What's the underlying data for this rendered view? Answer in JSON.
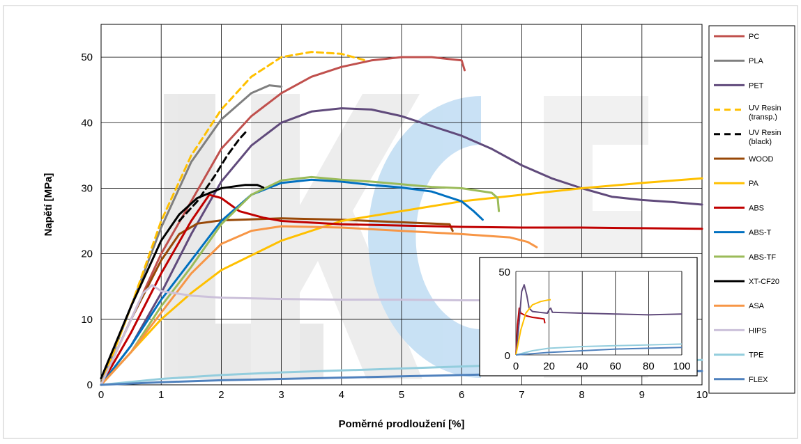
{
  "chart_data": [
    {
      "type": "line",
      "xlabel": "Poměrné prodloužení [%]",
      "ylabel": "Napětí [MPa]",
      "xlim": [
        0,
        10
      ],
      "ylim": [
        0,
        55
      ],
      "x_ticks": [
        0,
        1,
        2,
        3,
        4,
        5,
        6,
        7,
        8,
        9,
        10
      ],
      "y_ticks": [
        0,
        10,
        20,
        30,
        40,
        50
      ],
      "grid": true,
      "legend_position": "right",
      "series": [
        {
          "name": "PC",
          "color": "#c0504d",
          "dash": false,
          "points": [
            [
              0,
              0
            ],
            [
              0.5,
              10
            ],
            [
              1,
              20
            ],
            [
              1.5,
              28
            ],
            [
              2,
              36
            ],
            [
              2.5,
              41
            ],
            [
              3,
              44.5
            ],
            [
              3.5,
              47
            ],
            [
              4,
              48.5
            ],
            [
              4.5,
              49.5
            ],
            [
              5,
              50
            ],
            [
              5.5,
              50
            ],
            [
              6,
              49.5
            ],
            [
              6.05,
              48
            ]
          ]
        },
        {
          "name": "PLA",
          "color": "#7f7f7f",
          "dash": false,
          "points": [
            [
              0,
              0
            ],
            [
              0.5,
              12
            ],
            [
              1,
              24
            ],
            [
              1.5,
              34
            ],
            [
              2,
              40.5
            ],
            [
              2.5,
              44.5
            ],
            [
              2.8,
              45.7
            ],
            [
              3,
              45.5
            ]
          ]
        },
        {
          "name": "PET",
          "color": "#604a7b",
          "dash": false,
          "points": [
            [
              0,
              0
            ],
            [
              0.5,
              6
            ],
            [
              1,
              14
            ],
            [
              1.5,
              23
            ],
            [
              2,
              31
            ],
            [
              2.5,
              36.5
            ],
            [
              3,
              40
            ],
            [
              3.5,
              41.7
            ],
            [
              4,
              42.2
            ],
            [
              4.5,
              42
            ],
            [
              5,
              41
            ],
            [
              5.5,
              39.5
            ],
            [
              6,
              38
            ],
            [
              6.5,
              36
            ],
            [
              7,
              33.5
            ],
            [
              7.5,
              31.5
            ],
            [
              8,
              30
            ],
            [
              8.5,
              28.7
            ],
            [
              9,
              28.2
            ],
            [
              9.5,
              27.9
            ],
            [
              10,
              27.5
            ]
          ]
        },
        {
          "name": "UV Resin (transp.)",
          "color": "#ffc000",
          "dash": true,
          "points": [
            [
              0,
              0
            ],
            [
              0.5,
              12
            ],
            [
              1,
              25
            ],
            [
              1.5,
              35
            ],
            [
              2,
              42
            ],
            [
              2.5,
              47
            ],
            [
              3,
              50
            ],
            [
              3.5,
              50.8
            ],
            [
              4,
              50.5
            ],
            [
              4.4,
              49.5
            ]
          ]
        },
        {
          "name": "UV Resin (black)",
          "color": "#000000",
          "dash": true,
          "points": [
            [
              1.3,
              25
            ],
            [
              1.6,
              28
            ],
            [
              1.9,
              32
            ],
            [
              2.1,
              35
            ],
            [
              2.3,
              37.5
            ],
            [
              2.4,
              38.5
            ]
          ]
        },
        {
          "name": "WOOD",
          "color": "#984807",
          "dash": false,
          "points": [
            [
              0,
              0
            ],
            [
              0.5,
              10
            ],
            [
              1,
              19
            ],
            [
              1.3,
              23
            ],
            [
              1.6,
              24.6
            ],
            [
              2,
              25.1
            ],
            [
              3,
              25.4
            ],
            [
              4,
              25.2
            ],
            [
              5,
              24.8
            ],
            [
              5.8,
              24.5
            ],
            [
              5.85,
              23.5
            ]
          ]
        },
        {
          "name": "PA",
          "color": "#ffc000",
          "dash": false,
          "points": [
            [
              0,
              0
            ],
            [
              0.5,
              5
            ],
            [
              1,
              10
            ],
            [
              1.5,
              14
            ],
            [
              2,
              17.5
            ],
            [
              3,
              22
            ],
            [
              4,
              25
            ],
            [
              5,
              26.5
            ],
            [
              6,
              28
            ],
            [
              7,
              29
            ],
            [
              8,
              30
            ],
            [
              9,
              30.8
            ],
            [
              10,
              31.5
            ]
          ]
        },
        {
          "name": "ABS",
          "color": "#c00000",
          "dash": false,
          "points": [
            [
              0,
              0
            ],
            [
              0.5,
              8
            ],
            [
              1,
              17
            ],
            [
              1.5,
              25
            ],
            [
              1.8,
              29
            ],
            [
              2,
              28.5
            ],
            [
              2.3,
              26.5
            ],
            [
              2.7,
              25.5
            ],
            [
              3,
              25
            ],
            [
              4,
              24.5
            ],
            [
              5,
              24.3
            ],
            [
              6,
              24.1
            ],
            [
              7,
              24
            ],
            [
              8,
              24
            ],
            [
              9,
              23.9
            ],
            [
              10,
              23.8
            ]
          ]
        },
        {
          "name": "ABS-T",
          "color": "#0070c0",
          "dash": false,
          "points": [
            [
              0,
              0
            ],
            [
              0.5,
              6
            ],
            [
              1,
              13
            ],
            [
              1.5,
              19
            ],
            [
              2,
              25
            ],
            [
              2.5,
              29
            ],
            [
              3,
              30.8
            ],
            [
              3.5,
              31.3
            ],
            [
              4,
              31
            ],
            [
              4.5,
              30.5
            ],
            [
              5,
              30.1
            ],
            [
              5.5,
              29.5
            ],
            [
              6,
              28
            ],
            [
              6.2,
              26.5
            ],
            [
              6.35,
              25.2
            ]
          ]
        },
        {
          "name": "ABS-TF",
          "color": "#9bbb59",
          "dash": false,
          "points": [
            [
              0,
              0
            ],
            [
              0.5,
              5
            ],
            [
              1,
              12
            ],
            [
              1.5,
              18
            ],
            [
              2,
              24.5
            ],
            [
              2.5,
              29
            ],
            [
              3,
              31.2
            ],
            [
              3.5,
              31.7
            ],
            [
              4,
              31.3
            ],
            [
              4.5,
              31
            ],
            [
              5,
              30.6
            ],
            [
              5.5,
              30.2
            ],
            [
              6,
              30
            ],
            [
              6.5,
              29.3
            ],
            [
              6.6,
              28.5
            ],
            [
              6.62,
              26.5
            ]
          ]
        },
        {
          "name": "XT-CF20",
          "color": "#000000",
          "dash": false,
          "points": [
            [
              0,
              1
            ],
            [
              0.5,
              12
            ],
            [
              1,
              22
            ],
            [
              1.3,
              26
            ],
            [
              1.6,
              28.5
            ],
            [
              2,
              30
            ],
            [
              2.4,
              30.5
            ],
            [
              2.6,
              30.5
            ],
            [
              2.7,
              30.1
            ]
          ]
        },
        {
          "name": "ASA",
          "color": "#f79646",
          "dash": false,
          "points": [
            [
              0,
              0
            ],
            [
              0.5,
              5
            ],
            [
              1,
              11
            ],
            [
              1.5,
              17
            ],
            [
              2,
              21.5
            ],
            [
              2.5,
              23.5
            ],
            [
              3,
              24.2
            ],
            [
              4,
              24
            ],
            [
              5,
              23.5
            ],
            [
              6,
              23
            ],
            [
              6.8,
              22.5
            ],
            [
              7.1,
              21.8
            ],
            [
              7.25,
              21
            ]
          ]
        },
        {
          "name": "HIPS",
          "color": "#ccc1da",
          "dash": false,
          "points": [
            [
              0,
              0
            ],
            [
              0.4,
              8
            ],
            [
              0.7,
              14
            ],
            [
              0.85,
              15.2
            ],
            [
              1,
              14.3
            ],
            [
              1.5,
              13.6
            ],
            [
              2,
              13.3
            ],
            [
              3,
              13.1
            ],
            [
              4,
              13
            ],
            [
              5,
              13
            ],
            [
              6,
              12.9
            ],
            [
              6.8,
              12.9
            ]
          ]
        },
        {
          "name": "TPE",
          "color": "#93cddd",
          "dash": false,
          "points": [
            [
              0,
              0
            ],
            [
              1,
              0.9
            ],
            [
              2,
              1.5
            ],
            [
              3,
              1.9
            ],
            [
              4,
              2.2
            ],
            [
              5,
              2.5
            ],
            [
              6,
              2.8
            ],
            [
              7,
              3.1
            ],
            [
              8,
              3.4
            ],
            [
              9,
              3.6
            ],
            [
              10,
              3.8
            ]
          ]
        },
        {
          "name": "FLEX",
          "color": "#4f81bd",
          "dash": false,
          "points": [
            [
              0,
              0
            ],
            [
              1,
              0.4
            ],
            [
              2,
              0.7
            ],
            [
              3,
              0.9
            ],
            [
              4,
              1.1
            ],
            [
              5,
              1.3
            ],
            [
              6,
              1.5
            ],
            [
              7,
              1.7
            ],
            [
              8,
              1.8
            ],
            [
              9,
              2
            ],
            [
              10,
              2.1
            ]
          ]
        }
      ]
    },
    {
      "type": "line",
      "xlim": [
        0,
        100
      ],
      "ylim": [
        0,
        50
      ],
      "x_ticks": [
        0,
        20,
        40,
        60,
        80,
        100
      ],
      "y_ticks": [
        0,
        50
      ],
      "grid": true,
      "series": [
        {
          "color": "#c00000",
          "points": [
            [
              0,
              0
            ],
            [
              1,
              18
            ],
            [
              2,
              28
            ],
            [
              3,
              25
            ],
            [
              6,
              23.5
            ],
            [
              10,
              22.5
            ],
            [
              14,
              22
            ],
            [
              17,
              21.5
            ],
            [
              17.5,
              19
            ]
          ]
        },
        {
          "color": "#604a7b",
          "points": [
            [
              0,
              0
            ],
            [
              2,
              20
            ],
            [
              3.5,
              38
            ],
            [
              5,
              42
            ],
            [
              6.5,
              36
            ],
            [
              8,
              28
            ],
            [
              10,
              26
            ],
            [
              14,
              25.5
            ],
            [
              19,
              25
            ],
            [
              20,
              27
            ],
            [
              21,
              28
            ],
            [
              22,
              25.5
            ],
            [
              40,
              25
            ],
            [
              60,
              24.5
            ],
            [
              80,
              24
            ],
            [
              100,
              24.5
            ]
          ]
        },
        {
          "color": "#ffc000",
          "points": [
            [
              0,
              0
            ],
            [
              3,
              15
            ],
            [
              6,
              25
            ],
            [
              10,
              30
            ],
            [
              15,
              32
            ],
            [
              20,
              33
            ],
            [
              21,
              33
            ]
          ]
        },
        {
          "color": "#93cddd",
          "points": [
            [
              0,
              0
            ],
            [
              10,
              2.5
            ],
            [
              20,
              4
            ],
            [
              40,
              5
            ],
            [
              60,
              5.5
            ],
            [
              80,
              6
            ],
            [
              100,
              6.5
            ]
          ]
        },
        {
          "color": "#4f81bd",
          "points": [
            [
              0,
              0
            ],
            [
              20,
              1.5
            ],
            [
              40,
              2.5
            ],
            [
              60,
              3.5
            ],
            [
              80,
              4
            ],
            [
              100,
              4.5
            ]
          ]
        }
      ]
    }
  ]
}
